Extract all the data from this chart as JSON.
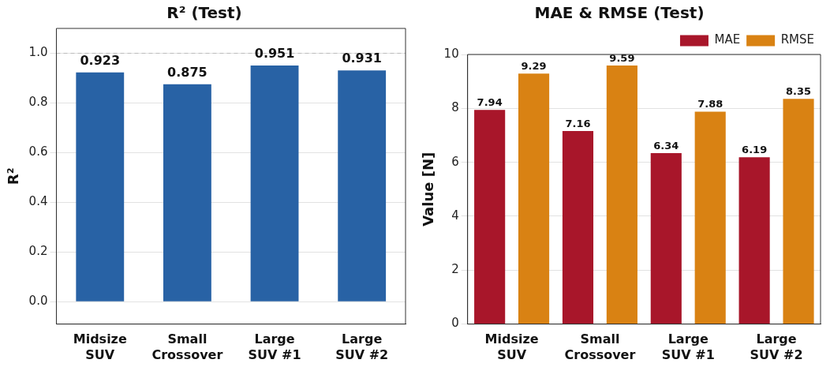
{
  "chart_data": [
    {
      "type": "bar",
      "title": "R² (Test)",
      "ylabel": "R²",
      "categories": [
        "Midsize SUV",
        "Small Crossover",
        "Large SUV #1",
        "Large SUV #2"
      ],
      "values": [
        0.923,
        0.875,
        0.951,
        0.931
      ],
      "color": "#2862a5",
      "ylim": [
        -0.09,
        1.1
      ],
      "yticks": [
        {
          "value": 0,
          "label": "0.0"
        },
        {
          "value": 0.2,
          "label": "0.2"
        },
        {
          "value": 0.4,
          "label": "0.4"
        },
        {
          "value": 0.6,
          "label": "0.6"
        },
        {
          "value": 0.8,
          "label": "0.8"
        },
        {
          "value": 1,
          "label": "1.0"
        }
      ],
      "ref_lines": [
        {
          "axis": "y",
          "value": 1,
          "color": "#bbbbbb",
          "line_style": "dashed"
        }
      ],
      "grid": "y",
      "data_labels": true
    },
    {
      "type": "bar",
      "title": "MAE & RMSE (Test)",
      "ylabel": "Value [N]",
      "categories": [
        "Midsize SUV",
        "Small Crossover",
        "Large SUV #1",
        "Large SUV #2"
      ],
      "series": [
        {
          "name": "MAE",
          "color": "#a8162a",
          "values": [
            7.94,
            7.16,
            6.34,
            6.19
          ]
        },
        {
          "name": "RMSE",
          "color": "#d98213",
          "values": [
            9.29,
            9.59,
            7.88,
            8.35
          ]
        }
      ],
      "ylim": [
        0,
        10
      ],
      "yticks": [
        0,
        2,
        4,
        6,
        8,
        10
      ],
      "grid": "y",
      "legend": "top right",
      "data_labels": true
    }
  ]
}
